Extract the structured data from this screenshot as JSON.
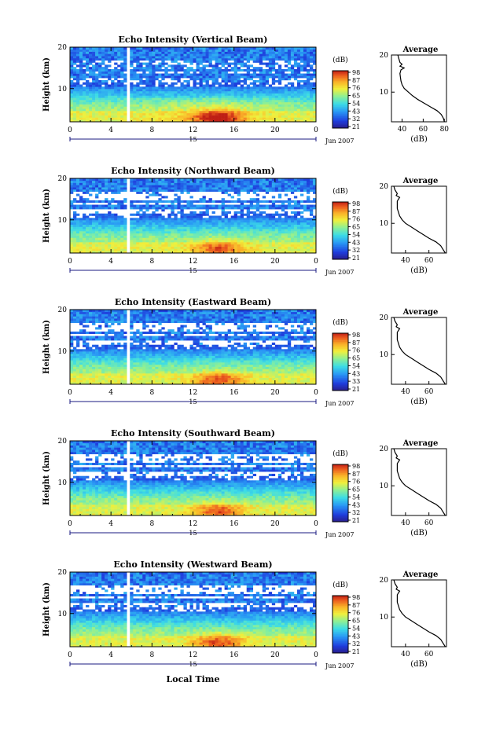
{
  "chart_data": [
    {
      "type": "heatmap",
      "title": "Echo Intensity (Vertical Beam)",
      "ylabel": "Height (km)",
      "xlim": [
        0,
        24
      ],
      "ylim": [
        2,
        20
      ],
      "x_ticks": [
        "0",
        "4",
        "8",
        "12",
        "16",
        "20",
        "0"
      ],
      "y_ticks": [
        "20",
        "10"
      ],
      "date_marker": "15",
      "date_label": "Jun 2007",
      "colorbar": {
        "unit": "(dB)",
        "ticks": [
          "98",
          "87",
          "76",
          "65",
          "54",
          "43",
          "32",
          "21"
        ]
      },
      "profile": {
        "title": "Average",
        "xlabel": "(dB)",
        "x_ticks": [
          "40",
          "60",
          "80"
        ],
        "y_ticks": [
          "20",
          "10"
        ],
        "xlim": [
          30,
          82
        ],
        "height": [
          2,
          3,
          4,
          5,
          6,
          7,
          8,
          9,
          10,
          11,
          12,
          13,
          14,
          15,
          16,
          16.5,
          17,
          17.5,
          18,
          19,
          20
        ],
        "values": [
          80,
          79,
          77,
          73,
          67,
          61,
          55,
          50,
          46,
          42,
          40,
          39,
          38.5,
          38,
          39,
          42,
          38,
          40,
          38,
          37,
          36
        ]
      }
    },
    {
      "type": "heatmap",
      "title": "Echo Intensity (Northward Beam)",
      "ylabel": "Height (km)",
      "xlim": [
        0,
        24
      ],
      "ylim": [
        2,
        20
      ],
      "x_ticks": [
        "0",
        "4",
        "8",
        "12",
        "16",
        "20",
        "0"
      ],
      "y_ticks": [
        "20",
        "10"
      ],
      "date_marker": "15",
      "date_label": "Jun 2007",
      "colorbar": {
        "unit": "(dB)",
        "ticks": [
          "98",
          "87",
          "76",
          "65",
          "54",
          "43",
          "32",
          "21"
        ]
      },
      "profile": {
        "title": "Average",
        "xlabel": "(dB)",
        "x_ticks": [
          "40",
          "60"
        ],
        "y_ticks": [
          "20",
          "10"
        ],
        "xlim": [
          28,
          75
        ],
        "height": [
          2,
          3,
          4,
          5,
          6,
          7,
          8,
          9,
          10,
          11,
          12,
          13,
          14,
          15,
          16,
          17,
          17.5,
          18,
          19,
          20
        ],
        "values": [
          74,
          72,
          70,
          66,
          60,
          55,
          50,
          45,
          40,
          37,
          35,
          34,
          33,
          33,
          33,
          35,
          32,
          33,
          31,
          30
        ]
      }
    },
    {
      "type": "heatmap",
      "title": "Echo Intensity (Eastward Beam)",
      "ylabel": "Height (km)",
      "xlim": [
        0,
        24
      ],
      "ylim": [
        2,
        20
      ],
      "x_ticks": [
        "0",
        "4",
        "8",
        "12",
        "16",
        "20",
        "0"
      ],
      "y_ticks": [
        "20",
        "10"
      ],
      "date_marker": "15",
      "date_label": "Jun 2007",
      "colorbar": {
        "unit": "(dB)",
        "ticks": [
          "98",
          "87",
          "76",
          "65",
          "54",
          "43",
          "33",
          "21"
        ]
      },
      "profile": {
        "title": "Average",
        "xlabel": "(dB)",
        "x_ticks": [
          "40",
          "60"
        ],
        "y_ticks": [
          "20",
          "10"
        ],
        "xlim": [
          28,
          75
        ],
        "height": [
          2,
          3,
          4,
          5,
          6,
          7,
          8,
          9,
          10,
          11,
          12,
          13,
          14,
          15,
          16,
          17,
          17.5,
          18,
          19,
          20
        ],
        "values": [
          74,
          72,
          70,
          66,
          60,
          55,
          50,
          45,
          40,
          37,
          35,
          34,
          33,
          33,
          33,
          35,
          32,
          33,
          31,
          30
        ]
      }
    },
    {
      "type": "heatmap",
      "title": "Echo Intensity (Southward Beam)",
      "ylabel": "Height (km)",
      "xlim": [
        0,
        24
      ],
      "ylim": [
        2,
        20
      ],
      "x_ticks": [
        "0",
        "4",
        "8",
        "12",
        "16",
        "20",
        "0"
      ],
      "y_ticks": [
        "20",
        "10"
      ],
      "date_marker": "15",
      "date_label": "Jun 2007",
      "colorbar": {
        "unit": "(dB)",
        "ticks": [
          "98",
          "87",
          "76",
          "65",
          "54",
          "43",
          "32",
          "21"
        ]
      },
      "profile": {
        "title": "Average",
        "xlabel": "(dB)",
        "x_ticks": [
          "40",
          "60"
        ],
        "y_ticks": [
          "20",
          "10"
        ],
        "xlim": [
          28,
          75
        ],
        "height": [
          2,
          3,
          4,
          5,
          6,
          7,
          8,
          9,
          10,
          11,
          12,
          13,
          14,
          15,
          16,
          17,
          17.5,
          18,
          19,
          20
        ],
        "values": [
          74,
          72,
          70,
          66,
          60,
          55,
          50,
          45,
          40,
          37,
          35,
          34,
          33,
          33,
          33,
          35,
          32,
          33,
          31,
          30
        ]
      }
    },
    {
      "type": "heatmap",
      "title": "Echo Intensity (Westward Beam)",
      "ylabel": "Height (km)",
      "xlabel": "Local Time",
      "xlim": [
        0,
        24
      ],
      "ylim": [
        2,
        20
      ],
      "x_ticks": [
        "0",
        "4",
        "8",
        "12",
        "16",
        "20",
        "0"
      ],
      "y_ticks": [
        "20",
        "10"
      ],
      "date_marker": "15",
      "date_label": "Jun 2007",
      "colorbar": {
        "unit": "(dB)",
        "ticks": [
          "98",
          "87",
          "76",
          "65",
          "54",
          "43",
          "32",
          "21"
        ]
      },
      "profile": {
        "title": "Average",
        "xlabel": "(dB)",
        "x_ticks": [
          "40",
          "60"
        ],
        "y_ticks": [
          "20",
          "10"
        ],
        "xlim": [
          28,
          75
        ],
        "height": [
          2,
          3,
          4,
          5,
          6,
          7,
          8,
          9,
          10,
          11,
          12,
          13,
          14,
          15,
          16,
          17,
          17.5,
          18,
          19,
          20
        ],
        "values": [
          74,
          72,
          70,
          66,
          60,
          55,
          50,
          45,
          40,
          37,
          35,
          34,
          33,
          33,
          33,
          35,
          32,
          33,
          31,
          30
        ]
      }
    }
  ]
}
